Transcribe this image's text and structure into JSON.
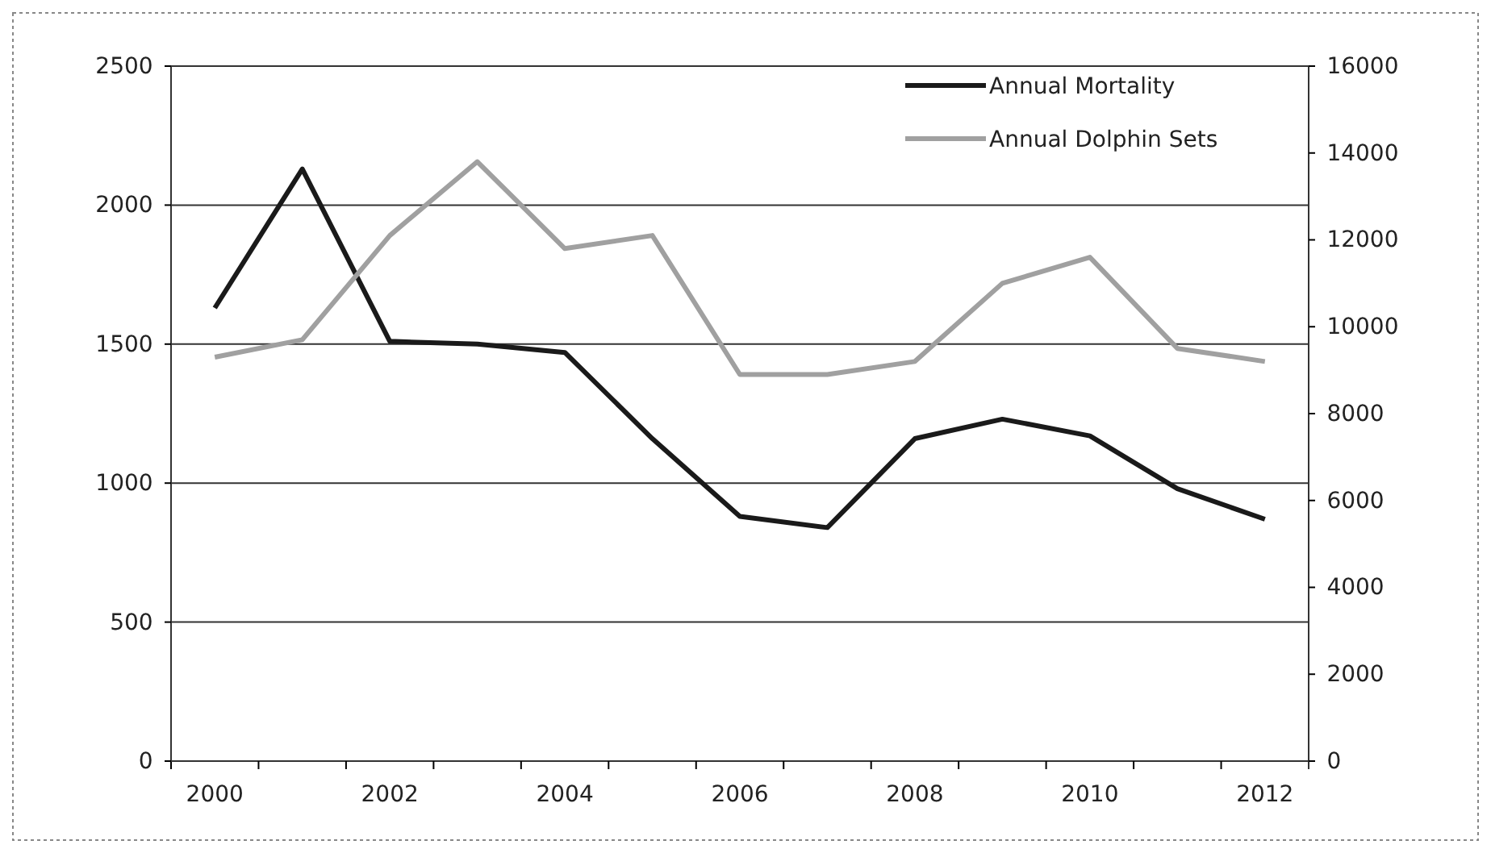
{
  "chart_data": {
    "type": "line",
    "categories": [
      "2000",
      null,
      "2002",
      null,
      "2004",
      null,
      "2006",
      null,
      "2008",
      null,
      "2010",
      null,
      "2012"
    ],
    "series": [
      {
        "name": "Annual Mortality",
        "color": "#1a1a1a",
        "values": [
          1630,
          2130,
          1510,
          1500,
          1470,
          1160,
          880,
          840,
          1160,
          1230,
          1170,
          980,
          870
        ]
      },
      {
        "name": "Annual Dolphin Sets",
        "color": "#a0a0a0",
        "axis": "y2",
        "values": [
          9300,
          9700,
          12100,
          13800,
          11800,
          12100,
          8900,
          8900,
          9200,
          11000,
          11600,
          9500,
          9200
        ]
      }
    ],
    "ylim": [
      0,
      2500
    ],
    "yticks": [
      0,
      500,
      1000,
      1500,
      2000,
      2500
    ],
    "y2lim": [
      0,
      16000
    ],
    "y2ticks": [
      0,
      2000,
      4000,
      6000,
      8000,
      10000,
      12000,
      14000,
      16000
    ],
    "grid": "y",
    "legend": "top right",
    "marker": "none",
    "line_style": "solid"
  }
}
